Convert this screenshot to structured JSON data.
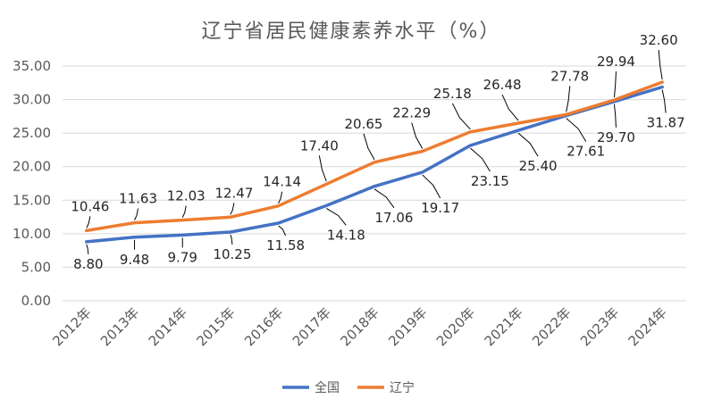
{
  "chart_data": {
    "type": "line",
    "title": "辽宁省居民健康素养水平（%）",
    "categories": [
      "2012年",
      "2013年",
      "2014年",
      "2015年",
      "2016年",
      "2017年",
      "2018年",
      "2019年",
      "2020年",
      "2021年",
      "2022年",
      "2023年",
      "2024年"
    ],
    "series": [
      {
        "name": "全国",
        "color": "#4472c4",
        "values": [
          8.8,
          9.48,
          9.79,
          10.25,
          11.58,
          14.18,
          17.06,
          19.17,
          23.15,
          25.4,
          27.61,
          29.7,
          31.87
        ],
        "labels": [
          "8.80",
          "9.48",
          "9.79",
          "10.25",
          "11.58",
          "14.18",
          "17.06",
          "19.17",
          "23.15",
          "25.40",
          "27.61",
          "29.70",
          "31.87"
        ]
      },
      {
        "name": "辽宁",
        "color": "#ed7d31",
        "values": [
          10.46,
          11.63,
          12.03,
          12.47,
          14.14,
          17.4,
          20.65,
          22.29,
          25.18,
          26.48,
          27.78,
          29.94,
          32.6
        ],
        "labels": [
          "10.46",
          "11.63",
          "12.03",
          "12.47",
          "14.14",
          "17.40",
          "20.65",
          "22.29",
          "25.18",
          "26.48",
          "27.78",
          "29.94",
          "32.60"
        ]
      }
    ],
    "ylim": [
      0,
      35
    ],
    "yticks": [
      "0.00",
      "5.00",
      "10.00",
      "15.00",
      "20.00",
      "25.00",
      "30.00",
      "35.00"
    ],
    "grid": true,
    "legend": "bottom"
  }
}
